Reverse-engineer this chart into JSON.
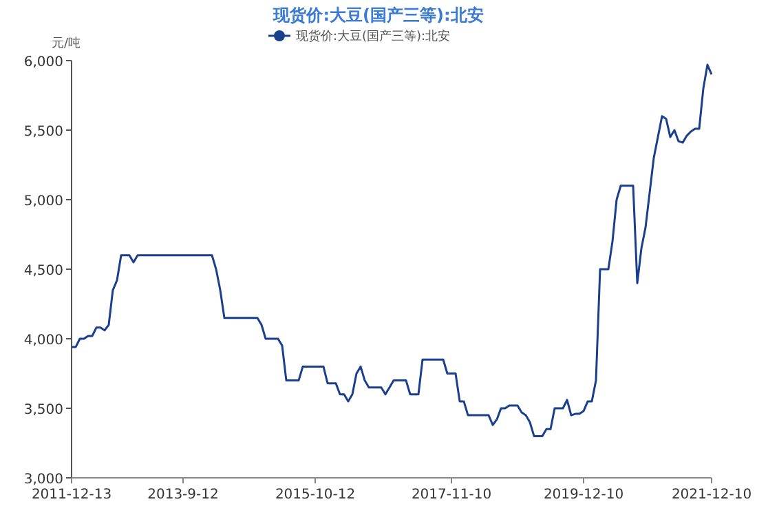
{
  "chart_data": {
    "type": "line",
    "title": "现货价:大豆(国产三等):北安",
    "ylabel": "元/吨",
    "legend": "top",
    "grid": false,
    "ylim": [
      3000,
      6000
    ],
    "yticks": [
      {
        "value": 3000,
        "label": "3,000"
      },
      {
        "value": 3500,
        "label": "3,500"
      },
      {
        "value": 4000,
        "label": "4,000"
      },
      {
        "value": 4500,
        "label": "4,500"
      },
      {
        "value": 5000,
        "label": "5,000"
      },
      {
        "value": 5500,
        "label": "5,500"
      },
      {
        "value": 6000,
        "label": "6,000"
      }
    ],
    "categories": [
      "2011-12-13",
      null,
      null,
      null,
      null,
      null,
      null,
      null,
      null,
      null,
      null,
      null,
      null,
      null,
      null,
      null,
      null,
      null,
      null,
      null,
      null,
      null,
      null,
      null,
      null,
      null,
      null,
      "2013-9-12",
      null,
      null,
      null,
      null,
      null,
      null,
      null,
      null,
      null,
      null,
      null,
      null,
      null,
      null,
      null,
      null,
      null,
      null,
      null,
      null,
      null,
      null,
      null,
      null,
      null,
      null,
      null,
      null,
      null,
      null,
      null,
      "2015-10-12",
      null,
      null,
      null,
      null,
      null,
      null,
      null,
      null,
      null,
      null,
      null,
      null,
      null,
      null,
      null,
      null,
      null,
      null,
      null,
      null,
      null,
      null,
      null,
      null,
      null,
      null,
      null,
      null,
      null,
      null,
      null,
      null,
      "2017-11-10",
      null,
      null,
      null,
      null,
      null,
      null,
      null,
      null,
      null,
      null,
      null,
      null,
      null,
      null,
      null,
      null,
      null,
      null,
      null,
      null,
      null,
      null,
      null,
      null,
      null,
      null,
      null,
      null,
      null,
      null,
      null,
      "2019-12-10",
      null,
      null,
      null,
      null,
      null,
      null,
      null,
      null,
      null,
      null,
      null,
      null,
      null,
      null,
      null,
      null,
      null,
      null,
      null,
      null,
      null,
      null,
      null,
      null,
      null,
      null,
      null,
      null,
      null,
      null,
      "2021-12-10"
    ],
    "series": [
      {
        "name": "现货价:大豆(国产三等):北安",
        "color": "#1a3f8c",
        "values": [
          3940,
          3940,
          4000,
          4000,
          4020,
          4020,
          4080,
          4080,
          4060,
          4100,
          4350,
          4420,
          4600,
          4600,
          4600,
          4550,
          4600,
          4600,
          4600,
          4600,
          4600,
          4600,
          4600,
          4600,
          4600,
          4600,
          4600,
          4600,
          4600,
          4600,
          4600,
          4600,
          4600,
          4600,
          4600,
          4500,
          4350,
          4150,
          4150,
          4150,
          4150,
          4150,
          4150,
          4150,
          4150,
          4150,
          4100,
          4000,
          4000,
          4000,
          4000,
          3950,
          3700,
          3700,
          3700,
          3700,
          3800,
          3800,
          3800,
          3800,
          3800,
          3800,
          3680,
          3680,
          3680,
          3600,
          3600,
          3550,
          3600,
          3750,
          3800,
          3700,
          3650,
          3650,
          3650,
          3650,
          3600,
          3650,
          3700,
          3700,
          3700,
          3700,
          3600,
          3600,
          3600,
          3850,
          3850,
          3850,
          3850,
          3850,
          3850,
          3750,
          3750,
          3750,
          3550,
          3550,
          3450,
          3450,
          3450,
          3450,
          3450,
          3450,
          3380,
          3420,
          3500,
          3500,
          3520,
          3520,
          3520,
          3470,
          3450,
          3400,
          3300,
          3300,
          3300,
          3350,
          3350,
          3500,
          3500,
          3500,
          3560,
          3450,
          3460,
          3460,
          3480,
          3550,
          3550,
          3700,
          4500,
          4500,
          4500,
          4700,
          5000,
          5100,
          5100,
          5100,
          5100,
          4400,
          4650,
          4800,
          5050,
          5300,
          5450,
          5600,
          5580,
          5450,
          5500,
          5420,
          5410,
          5460,
          5490,
          5510,
          5510,
          5800,
          5970,
          5900
        ]
      }
    ]
  }
}
